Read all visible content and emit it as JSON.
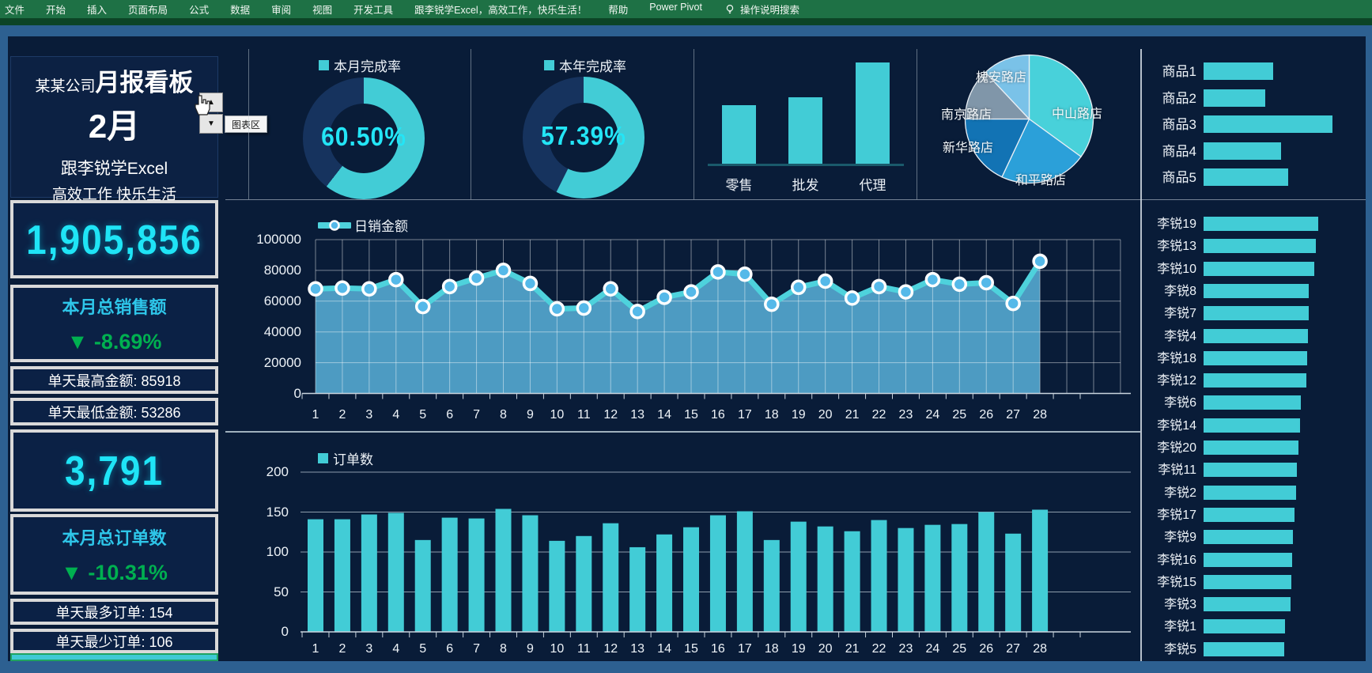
{
  "ribbon": {
    "items": [
      "文件",
      "开始",
      "插入",
      "页面布局",
      "公式",
      "数据",
      "审阅",
      "视图",
      "开发工具",
      "跟李锐学Excel，高效工作，快乐生活！",
      "帮助",
      "Power Pivot"
    ],
    "search_label": "操作说明搜索"
  },
  "header": {
    "company": "某某公司",
    "title": "月报看板",
    "month": "2月",
    "subtitle1": "跟李锐学Excel",
    "subtitle2": "高效工作 快乐生活",
    "tooltip": "图表区"
  },
  "kpi_sales": {
    "value": "1,905,856",
    "label": "本月总销售额",
    "change": "▼ -8.69%",
    "max_label": "单天最高金额:",
    "max_value": "85918",
    "min_label": "单天最低金额:",
    "min_value": "53286"
  },
  "kpi_orders": {
    "value": "3,791",
    "label": "本月总订单数",
    "change": "▼ -10.31%",
    "max_label": "单天最多订单:",
    "max_value": "154",
    "min_label": "单天最少订单:",
    "min_value": "106"
  },
  "chart_data": {
    "month_rate": {
      "type": "donut",
      "legend": "本月完成率",
      "value": 60.5,
      "label": "60.50%",
      "color": "#42ccd6",
      "rest_color": "#16335e"
    },
    "year_rate": {
      "type": "donut",
      "legend": "本年完成率",
      "value": 57.39,
      "label": "57.39%",
      "color": "#42ccd6",
      "rest_color": "#16335e"
    },
    "channels": {
      "type": "bar",
      "categories": [
        "零售",
        "批发",
        "代理"
      ],
      "values": [
        58,
        66,
        100
      ],
      "color": "#42ccd6"
    },
    "stores": {
      "type": "pie",
      "labels": [
        "中山路店",
        "和平路店",
        "新华路店",
        "南京路店",
        "槐安路店"
      ],
      "values": [
        35,
        22,
        18,
        13,
        12
      ],
      "colors": [
        "#48d1da",
        "#2ba0d9",
        "#1273b4",
        "#8096a9",
        "#7ac2e8"
      ]
    },
    "products": {
      "type": "bar-horizontal",
      "categories": [
        "商品1",
        "商品2",
        "商品3",
        "商品4",
        "商品5"
      ],
      "values": [
        88,
        78,
        163,
        98,
        107
      ],
      "color": "#42ccd6"
    },
    "daily_sales": {
      "type": "area-line",
      "legend": "日销金额",
      "x": [
        1,
        2,
        3,
        4,
        5,
        6,
        7,
        8,
        9,
        10,
        11,
        12,
        13,
        14,
        15,
        16,
        17,
        18,
        19,
        20,
        21,
        22,
        23,
        24,
        25,
        26,
        27,
        28
      ],
      "values": [
        68000,
        68500,
        68000,
        74000,
        56500,
        69500,
        75000,
        80000,
        71500,
        55000,
        55500,
        68000,
        53286,
        62500,
        66000,
        79000,
        77500,
        58000,
        69000,
        73000,
        62000,
        69500,
        66000,
        74000,
        71000,
        72000,
        58500,
        85918
      ],
      "ylim": [
        0,
        100000
      ],
      "yticks": [
        0,
        20000,
        40000,
        60000,
        80000,
        100000
      ],
      "line_color": "#4ed2dc",
      "fill_color": "#4d9bc2",
      "marker_color": "#55b9e9"
    },
    "daily_orders": {
      "type": "bar",
      "legend": "订单数",
      "x": [
        1,
        2,
        3,
        4,
        5,
        6,
        7,
        8,
        9,
        10,
        11,
        12,
        13,
        14,
        15,
        16,
        17,
        18,
        19,
        20,
        21,
        22,
        23,
        24,
        25,
        26,
        27,
        28
      ],
      "values": [
        141,
        141,
        147,
        149,
        115,
        143,
        142,
        154,
        146,
        114,
        120,
        136,
        106,
        122,
        131,
        146,
        151,
        115,
        138,
        132,
        126,
        140,
        130,
        134,
        135,
        150,
        123,
        153
      ],
      "ylim": [
        0,
        200
      ],
      "yticks": [
        0,
        50,
        100,
        150,
        200
      ],
      "color": "#42ccd6"
    },
    "staff": {
      "type": "bar-horizontal",
      "categories": [
        "李锐19",
        "李锐13",
        "李锐10",
        "李锐8",
        "李锐7",
        "李锐4",
        "李锐18",
        "李锐12",
        "李锐6",
        "李锐14",
        "李锐20",
        "李锐11",
        "李锐2",
        "李锐17",
        "李锐9",
        "李锐16",
        "李锐15",
        "李锐3",
        "李锐1",
        "李锐5"
      ],
      "values": [
        145,
        142,
        140,
        133,
        133,
        132,
        131,
        130,
        123,
        122,
        120,
        118,
        117,
        115,
        113,
        112,
        111,
        110,
        103,
        102
      ],
      "color": "#42ccd6"
    }
  }
}
